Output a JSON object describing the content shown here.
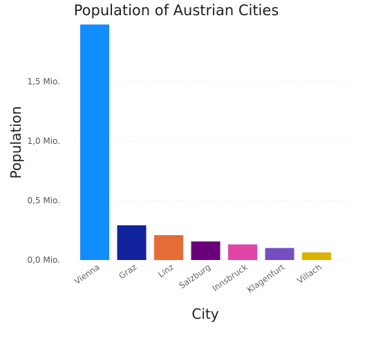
{
  "chart_data": {
    "type": "bar",
    "title": "Population of Austrian Cities",
    "xlabel": "City",
    "ylabel": "Population",
    "categories": [
      "Vienna",
      "Graz",
      "Linz",
      "Salzburg",
      "Innsbruck",
      "Klagenfurt",
      "Villach"
    ],
    "values": [
      1980000,
      292000,
      209000,
      156000,
      131000,
      101000,
      64000
    ],
    "colors": [
      "#118DFF",
      "#12239E",
      "#E66C37",
      "#6B007B",
      "#E044A7",
      "#744EC2",
      "#D9B300"
    ],
    "ylim": [
      0,
      2000000
    ],
    "yticks": [
      {
        "value": 0,
        "label": "0,0 Mio."
      },
      {
        "value": 500000,
        "label": "0,5 Mio."
      },
      {
        "value": 1000000,
        "label": "1,0 Mio."
      },
      {
        "value": 1500000,
        "label": "1,5 Mio."
      }
    ],
    "grid": true,
    "grid_style": "dotted",
    "legend": false
  }
}
